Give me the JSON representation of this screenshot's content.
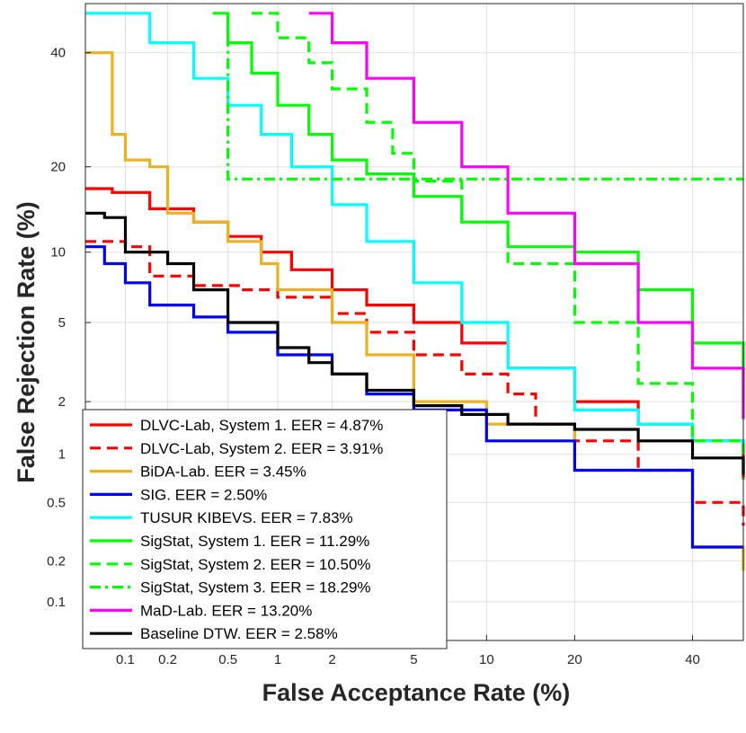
{
  "chart_data": {
    "type": "line",
    "title": "",
    "xlabel": "False Acceptance Rate (%)",
    "ylabel": "False Rejection Rate (%)",
    "xscale": "probit",
    "yscale": "probit",
    "xlim": [
      0.05,
      50
    ],
    "ylim": [
      0.05,
      50
    ],
    "grid": true,
    "legend_position": "lower-left",
    "x_ticks": [
      0.1,
      0.2,
      0.5,
      1,
      2,
      5,
      10,
      20,
      40
    ],
    "x_tick_labels": [
      "0.1",
      "0.2",
      "0.5",
      "1",
      "2",
      "5",
      "10",
      "20",
      "40"
    ],
    "y_ticks": [
      0.1,
      0.2,
      0.5,
      1,
      2,
      5,
      10,
      20,
      40
    ],
    "y_tick_labels": [
      "0.1",
      "0.2",
      "0.5",
      "1",
      "2",
      "5",
      "10",
      "20",
      "40"
    ],
    "series": [
      {
        "name": "DLVC-Lab, System 1. EER = 4.87%",
        "color": "#ff0000",
        "dash": "solid",
        "x": [
          0.05,
          0.08,
          0.15,
          0.3,
          0.5,
          0.8,
          1.2,
          2,
          3,
          5,
          8,
          12,
          20,
          30,
          40,
          50
        ],
        "y": [
          17,
          16.5,
          14.5,
          13,
          11.5,
          10,
          8.5,
          7,
          6,
          5,
          4,
          3,
          2,
          1.5,
          1.2,
          0.7
        ]
      },
      {
        "name": "DLVC-Lab, System 2. EER = 3.91%",
        "color": "#ff0000",
        "dash": "dashed",
        "x": [
          0.05,
          0.1,
          0.15,
          0.3,
          0.6,
          1,
          2,
          3,
          5,
          8,
          12,
          15,
          20,
          30,
          40,
          50
        ],
        "y": [
          11,
          10.5,
          8,
          7.3,
          7,
          6.5,
          5.5,
          4.5,
          3.5,
          2.8,
          2.2,
          1.5,
          1.2,
          0.8,
          0.5,
          0.35
        ]
      },
      {
        "name": "BiDA-Lab. EER = 3.45%",
        "color": "#edb120",
        "dash": "solid",
        "x": [
          0.05,
          0.07,
          0.08,
          0.1,
          0.15,
          0.2,
          0.3,
          0.5,
          0.8,
          1,
          2,
          3,
          5,
          10,
          20,
          40,
          50
        ],
        "y": [
          40,
          40,
          25,
          21,
          20,
          14,
          13,
          11,
          9,
          7,
          5,
          3.5,
          2,
          1.5,
          0.8,
          0.25,
          0.17
        ]
      },
      {
        "name": "SIG. EER = 2.50%",
        "color": "#0000ff",
        "dash": "solid",
        "x": [
          0.05,
          0.07,
          0.1,
          0.15,
          0.3,
          0.5,
          1,
          2,
          3,
          5,
          10,
          20,
          40,
          50
        ],
        "y": [
          10.5,
          9,
          7.5,
          6,
          5.3,
          4.5,
          3.5,
          2.8,
          2.2,
          1.8,
          1.2,
          0.8,
          0.25,
          0.25
        ]
      },
      {
        "name": "TUSUR KIBEVS. EER = 7.83%",
        "color": "#00ffff",
        "dash": "solid",
        "x": [
          0.05,
          0.08,
          0.15,
          0.3,
          0.5,
          0.8,
          1.2,
          2,
          3,
          5,
          8,
          12,
          20,
          30,
          40,
          50
        ],
        "y": [
          48,
          48,
          42,
          35,
          30,
          25,
          20,
          15,
          11,
          7.5,
          5,
          3,
          1.8,
          1.5,
          1.2,
          1
        ]
      },
      {
        "name": "SigStat, System 1. EER = 11.29%",
        "color": "#00ff00",
        "dash": "solid",
        "x": [
          0.4,
          0.5,
          0.7,
          1,
          1.5,
          2,
          3,
          5,
          8,
          12,
          20,
          30,
          40,
          50
        ],
        "y": [
          48,
          42,
          36,
          30,
          25,
          21,
          19,
          16,
          13,
          10.5,
          10,
          7,
          4,
          2.7
        ]
      },
      {
        "name": "SigStat, System 2. EER = 10.50%",
        "color": "#00ff00",
        "dash": "dashed",
        "x": [
          0.7,
          1,
          1.5,
          2,
          3,
          4,
          5,
          8,
          12,
          20,
          30,
          40,
          50
        ],
        "y": [
          48,
          43,
          38,
          33,
          27,
          22,
          18,
          13,
          9,
          5,
          2.5,
          1.2,
          0.7
        ]
      },
      {
        "name": "SigStat, System 3. EER = 18.29%",
        "color": "#00ff00",
        "dash": "dashdot",
        "x": [
          0.5,
          0.5,
          50
        ],
        "y": [
          48,
          18.29,
          18.29
        ]
      },
      {
        "name": "MaD-Lab. EER = 13.20%",
        "color": "#ff00ff",
        "dash": "solid",
        "x": [
          1.5,
          2,
          3,
          5,
          8,
          12,
          20,
          30,
          40,
          50
        ],
        "y": [
          48,
          42,
          35,
          27,
          20,
          14,
          9,
          5,
          3,
          1.6
        ]
      },
      {
        "name": "Baseline DTW. EER = 2.58%",
        "color": "#000000",
        "dash": "solid",
        "x": [
          0.05,
          0.07,
          0.1,
          0.2,
          0.3,
          0.5,
          1,
          1.5,
          2,
          3,
          5,
          8,
          12,
          20,
          30,
          40,
          50
        ],
        "y": [
          14,
          13.5,
          10,
          9,
          7,
          5,
          3.8,
          3.2,
          2.8,
          2.3,
          1.9,
          1.7,
          1.5,
          1.4,
          1.2,
          0.95,
          0.75
        ]
      }
    ]
  }
}
